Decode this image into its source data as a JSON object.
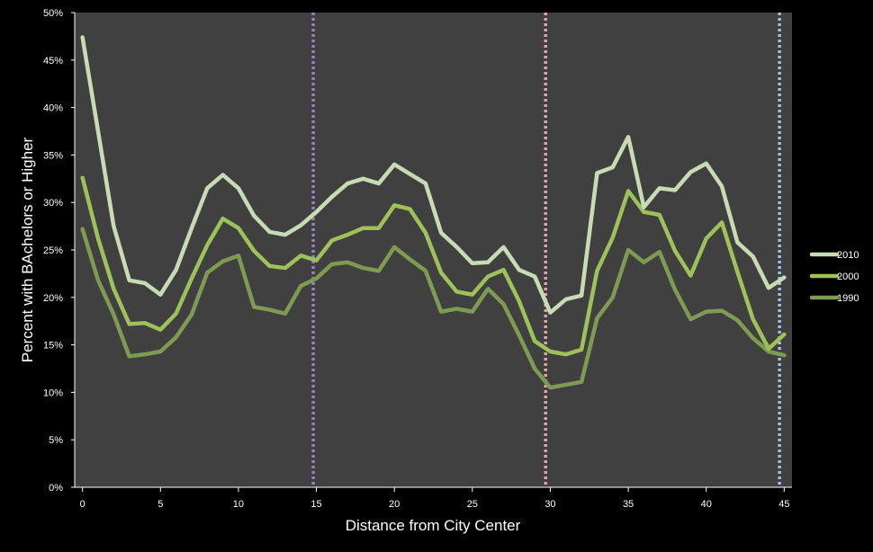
{
  "chart_data": {
    "type": "line",
    "title": "",
    "xlabel": "Distance from City Center",
    "ylabel": "Percent with BAchelors or Higher",
    "xlim": [
      -0.5,
      45.5
    ],
    "ylim": [
      0,
      0.5
    ],
    "x_ticks": [
      0,
      5,
      10,
      15,
      20,
      25,
      30,
      35,
      40,
      45
    ],
    "y_ticks": [
      0,
      0.05,
      0.1,
      0.15,
      0.2,
      0.25,
      0.3,
      0.35,
      0.4,
      0.45,
      0.5
    ],
    "y_tick_labels": [
      "0%",
      "5%",
      "10%",
      "15%",
      "20%",
      "25%",
      "30%",
      "35%",
      "40%",
      "45%",
      "50%"
    ],
    "x_tick_labels": [
      "0",
      "5",
      "10",
      "15",
      "20",
      "25",
      "30",
      "35",
      "40",
      "45"
    ],
    "grid": false,
    "legend_position": "right",
    "plot_background": "#404040",
    "page_background": "#000000",
    "x": [
      0,
      1,
      2,
      3,
      4,
      5,
      6,
      7,
      8,
      9,
      10,
      11,
      12,
      13,
      14,
      15,
      16,
      17,
      18,
      19,
      20,
      21,
      22,
      23,
      24,
      25,
      26,
      27,
      28,
      29,
      30,
      31,
      32,
      33,
      34,
      35,
      36,
      37,
      38,
      39,
      40,
      41,
      42,
      43,
      44,
      45
    ],
    "series": [
      {
        "name": "2010",
        "color": "#c8dcb4",
        "values": [
          0.474,
          0.375,
          0.275,
          0.218,
          0.215,
          0.203,
          0.229,
          0.273,
          0.315,
          0.329,
          0.315,
          0.286,
          0.269,
          0.266,
          0.276,
          0.29,
          0.306,
          0.32,
          0.325,
          0.32,
          0.34,
          0.33,
          0.32,
          0.268,
          0.253,
          0.236,
          0.237,
          0.253,
          0.229,
          0.222,
          0.184,
          0.198,
          0.202,
          0.331,
          0.337,
          0.369,
          0.295,
          0.315,
          0.313,
          0.332,
          0.341,
          0.317,
          0.258,
          0.243,
          0.21,
          0.221
        ]
      },
      {
        "name": "2000",
        "color": "#9ec25a",
        "values": [
          0.326,
          0.262,
          0.209,
          0.172,
          0.173,
          0.166,
          0.183,
          0.22,
          0.255,
          0.283,
          0.273,
          0.249,
          0.233,
          0.231,
          0.244,
          0.239,
          0.26,
          0.266,
          0.273,
          0.273,
          0.297,
          0.293,
          0.268,
          0.226,
          0.206,
          0.203,
          0.222,
          0.229,
          0.196,
          0.154,
          0.143,
          0.14,
          0.145,
          0.228,
          0.263,
          0.312,
          0.29,
          0.287,
          0.249,
          0.223,
          0.262,
          0.279,
          0.227,
          0.177,
          0.146,
          0.161
        ]
      },
      {
        "name": "1990",
        "color": "#7d9c52",
        "values": [
          0.272,
          0.218,
          0.182,
          0.138,
          0.14,
          0.143,
          0.158,
          0.182,
          0.226,
          0.238,
          0.244,
          0.19,
          0.187,
          0.183,
          0.212,
          0.22,
          0.235,
          0.237,
          0.231,
          0.228,
          0.253,
          0.24,
          0.228,
          0.185,
          0.188,
          0.185,
          0.209,
          0.193,
          0.16,
          0.125,
          0.105,
          0.108,
          0.111,
          0.178,
          0.2,
          0.25,
          0.237,
          0.248,
          0.208,
          0.177,
          0.185,
          0.186,
          0.176,
          0.157,
          0.143,
          0.139
        ]
      }
    ],
    "reference_lines": [
      {
        "x": 14.8,
        "color": "#9b7fc0",
        "style": "dotted"
      },
      {
        "x": 29.7,
        "color": "#e3a3a3",
        "style": "dotted"
      },
      {
        "x": 44.7,
        "color": "#9fbfe0",
        "style": "dotted"
      }
    ]
  }
}
